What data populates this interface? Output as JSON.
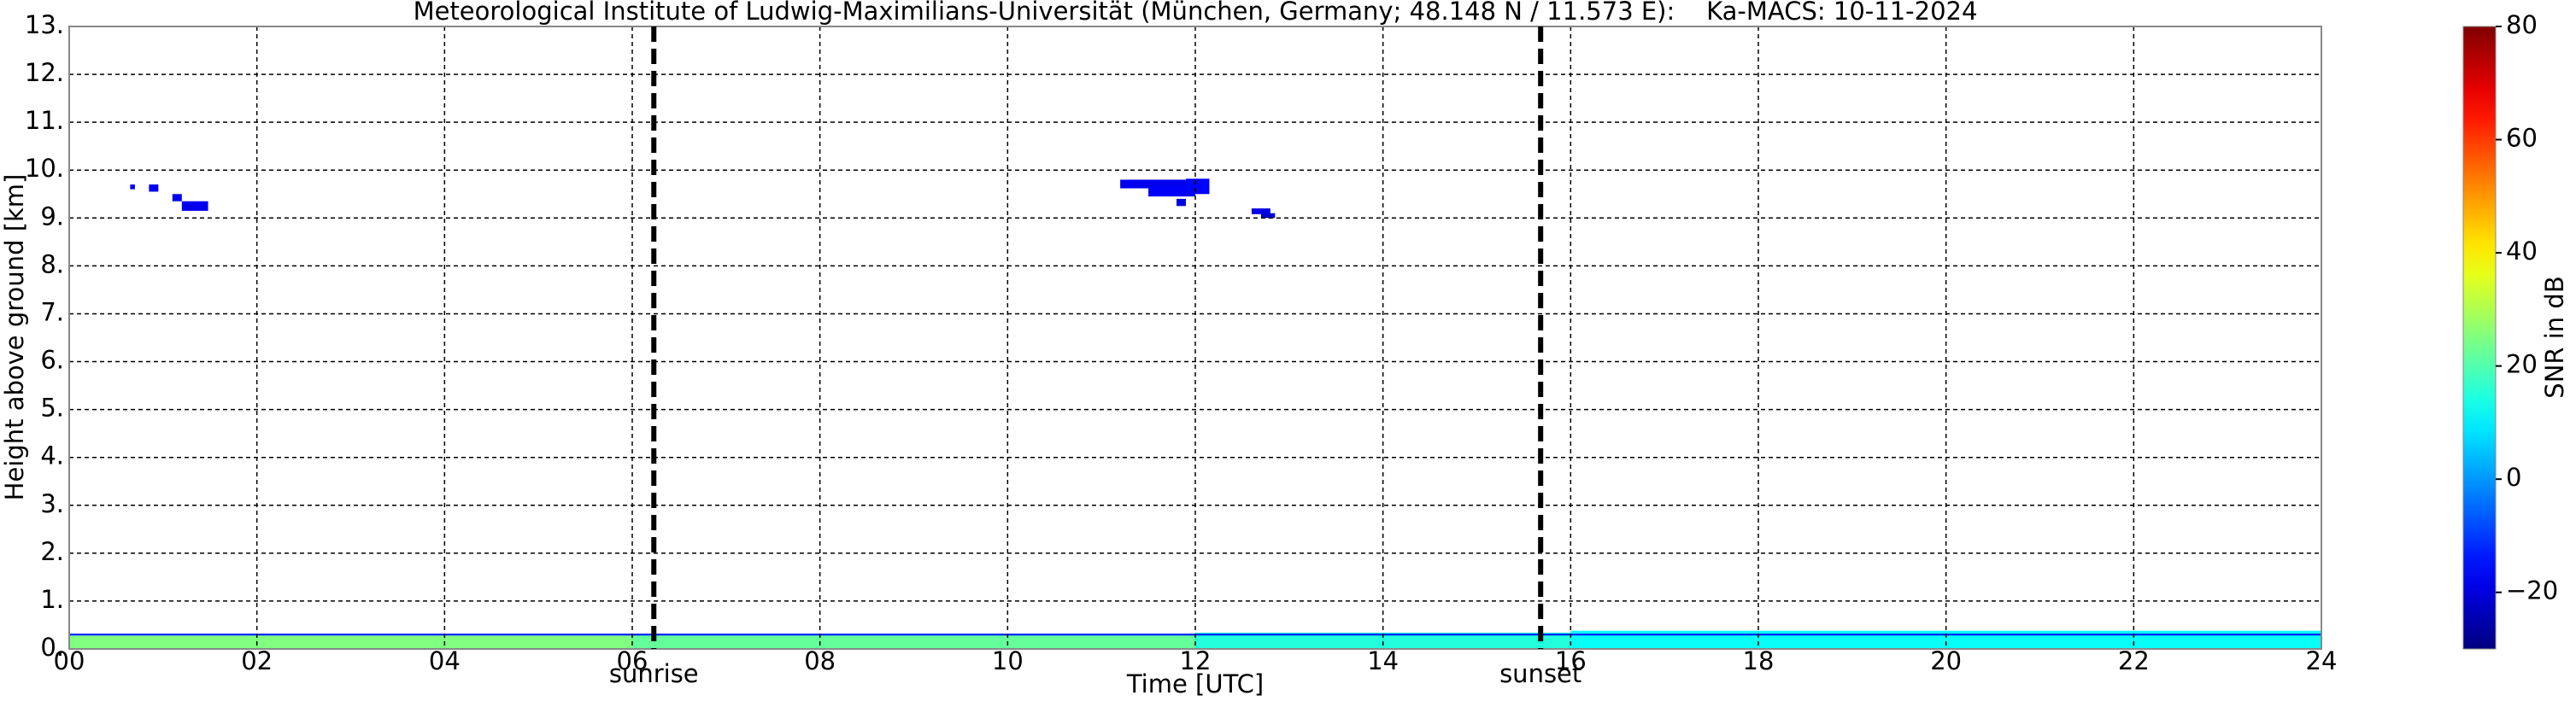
{
  "chart_data": {
    "type": "time-height",
    "title": "Meteorological Institute of Ludwig-Maximilians-Universität (München, Germany; 48.148 N / 11.573 E):    Ka-MACS: 10-11-2024",
    "xlabel": "Time [UTC]",
    "ylabel": "Height above ground [km]",
    "colorbar_label": "SNR in dB",
    "xlim": [
      0,
      24
    ],
    "xticks": [
      {
        "value": 0,
        "label": "00"
      },
      {
        "value": 2,
        "label": "02"
      },
      {
        "value": 4,
        "label": "04"
      },
      {
        "value": 6,
        "label": "06"
      },
      {
        "value": 8,
        "label": "08"
      },
      10,
      12,
      14,
      16,
      18,
      20,
      22,
      24
    ],
    "ylim": [
      0,
      13
    ],
    "yticks": [
      {
        "value": 0,
        "label": "0."
      },
      {
        "value": 1,
        "label": "1."
      },
      {
        "value": 2,
        "label": "2."
      },
      {
        "value": 3,
        "label": "3."
      },
      {
        "value": 4,
        "label": "4."
      },
      {
        "value": 5,
        "label": "5."
      },
      {
        "value": 6,
        "label": "6."
      },
      {
        "value": 7,
        "label": "7."
      },
      {
        "value": 8,
        "label": "8."
      },
      {
        "value": 9,
        "label": "9."
      },
      {
        "value": 10,
        "label": "10."
      },
      {
        "value": 11,
        "label": "11."
      },
      {
        "value": 12,
        "label": "12."
      },
      {
        "value": 13,
        "label": "13."
      }
    ],
    "clim": [
      -30,
      80
    ],
    "cticks": [
      {
        "value": -20,
        "label": "−20"
      },
      0,
      20,
      40,
      60,
      80
    ],
    "colormap": "jet",
    "grid": true,
    "vlines": [
      {
        "x": 6.23,
        "label": "sunrise"
      },
      {
        "x": 15.68,
        "label": "sunset"
      }
    ],
    "echoes": [
      {
        "x": [
          0,
          6
        ],
        "y": [
          0,
          0.28
        ],
        "snr": 25
      },
      {
        "x": [
          6,
          12
        ],
        "y": [
          0,
          0.3
        ],
        "snr": 22
      },
      {
        "x": [
          12,
          16
        ],
        "y": [
          0,
          0.34
        ],
        "snr": 15
      },
      {
        "x": [
          16,
          24
        ],
        "y": [
          0,
          0.38
        ],
        "snr": 12
      },
      {
        "x": [
          0,
          24
        ],
        "y": [
          0.28,
          0.32
        ],
        "snr": -12
      },
      {
        "x": [
          0.65,
          0.7
        ],
        "y": [
          9.6,
          9.7
        ],
        "snr": -18
      },
      {
        "x": [
          0.85,
          0.95
        ],
        "y": [
          9.55,
          9.7
        ],
        "snr": -18
      },
      {
        "x": [
          1.1,
          1.2
        ],
        "y": [
          9.35,
          9.5
        ],
        "snr": -18
      },
      {
        "x": [
          1.2,
          1.48
        ],
        "y": [
          9.15,
          9.35
        ],
        "snr": -18
      },
      {
        "x": [
          11.2,
          12.1
        ],
        "y": [
          9.62,
          9.8
        ],
        "snr": -18
      },
      {
        "x": [
          11.5,
          12.0
        ],
        "y": [
          9.45,
          9.65
        ],
        "snr": -17
      },
      {
        "x": [
          11.9,
          12.15
        ],
        "y": [
          9.5,
          9.82
        ],
        "snr": -16
      },
      {
        "x": [
          11.8,
          11.9
        ],
        "y": [
          9.25,
          9.4
        ],
        "snr": -20
      },
      {
        "x": [
          12.6,
          12.8
        ],
        "y": [
          9.08,
          9.2
        ],
        "snr": -19
      },
      {
        "x": [
          12.7,
          12.85
        ],
        "y": [
          9.0,
          9.1
        ],
        "snr": -21
      }
    ]
  }
}
